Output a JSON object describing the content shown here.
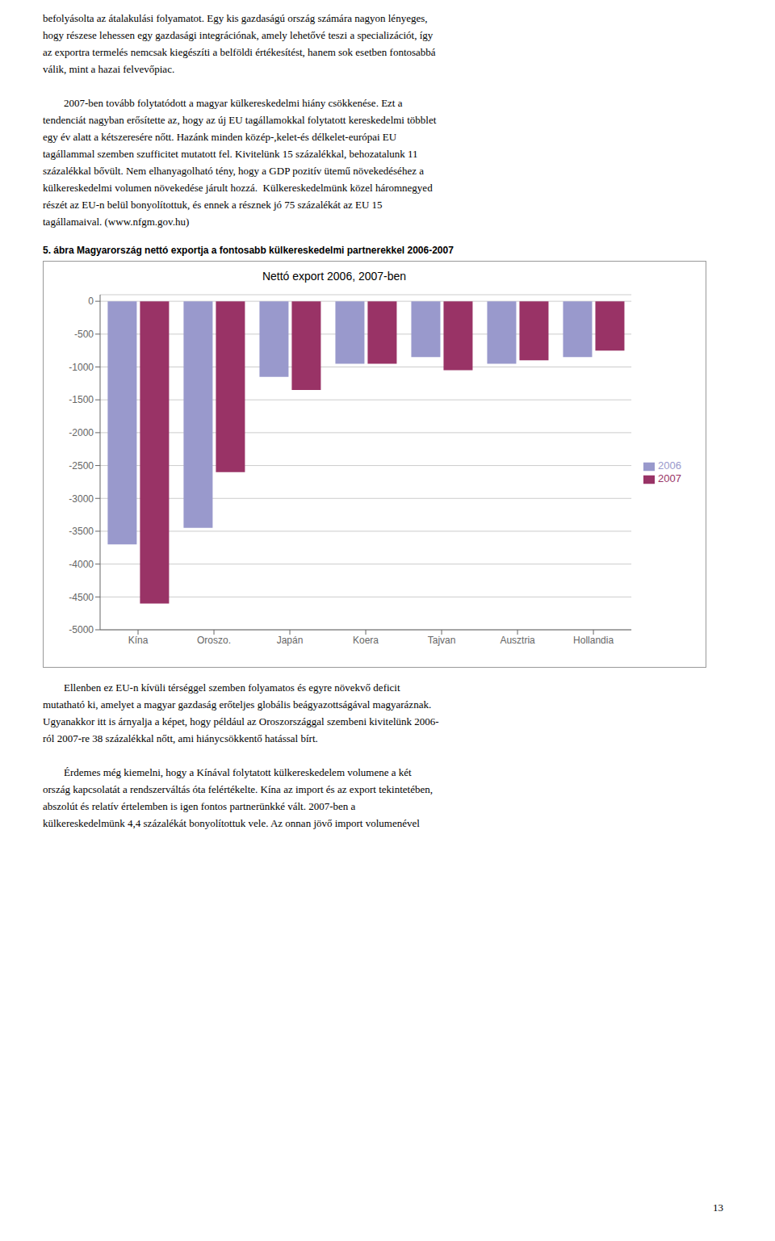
{
  "chart_data": {
    "type": "bar",
    "title": "Nettó export 2006, 2007-ben",
    "subtitle": "5. ábra Magyarország nettó exportja a fontosabb külkereskedelmi partnerekkel 2006-2007",
    "categories": [
      "Kína",
      "Oroszo.",
      "Japán",
      "Koera",
      "Tajvan",
      "Ausztria",
      "Hollandia"
    ],
    "series": [
      {
        "name": "2006",
        "color": "#9999CC",
        "values": [
          -3700,
          -3450,
          -1150,
          -950,
          -850,
          -950,
          -850
        ]
      },
      {
        "name": "2007",
        "color": "#993366",
        "values": [
          -4600,
          -2600,
          -1350,
          -950,
          -1050,
          -900,
          -750
        ]
      }
    ],
    "ylim": [
      -5000,
      100
    ],
    "yticks": [
      0,
      -500,
      -1000,
      -1500,
      -2000,
      -2500,
      -3000,
      -3500,
      -4000,
      -4500,
      -5000
    ],
    "grid": true,
    "legend": "right",
    "annotations": [
      "befolyásolta az átalakulási folyamatot. Egy kis gazdaságú ország számára nagyon lényeges,\nhogy részese lehessen egy gazdasági integrációnak, amely lehetővé teszi a specializációt, így\naz exportra termelés nemcsak kiegészíti a belföldi értékesítést, hanem sok esetben fontosabbá\nválik, mint a hazai felvevőpiac.\n\n        2007-ben tovább folytatódott a magyar külkereskedelmi hiány csökkenése. Ezt a\ntendenciát nagyban erősítette az, hogy az új EU tagállamokkal folytatott kereskedelmi többlet\negy év alatt a kétszeresére nőtt. Hazánk minden közép-,kelet-és délkelet-európai EU\ntagállammal szemben szufficitet mutatott fel. Kivitelünk 15 százalékkal, behozatalunk 11\nszázalékkal bővült. Nem elhanyagolható tény, hogy a GDP pozitív ütemű növekedéséhez a\nkülkereskedelmi volumen növekedése járult hozzá.  Külkereskedelmünk közel háromnegyed\nrészét az EU-n belül bonyolítottuk, és ennek a résznek jó 75 százalékát az EU 15\ntagállamaival. (www.nfgm.gov.hu)",
      "        Ellenben ez EU-n kívüli térséggel szemben folyamatos és egyre növekvő deficit\nmutatható ki, amelyet a magyar gazdaság erőteljes globális beágyazottságával magyaráznak.\nUgyanakkor itt is árnyalja a képet, hogy például az Oroszországgal szembeni kivitelünk 2006-\nról 2007-re 38 százalékkal nőtt, ami hiánycsökkentő hatással bírt.\n\n        Érdemes még kiemelni, hogy a Kínával folytatott külkereskedelem volumene a két\nország kapcsolatát a rendszerváltás óta felértékelte. Kína az import és az export tekintetében,\nabszolút és relatív értelemben is igen fontos partnerünkké vált. 2007-ben a\nkülkereskedelmünk 4,4 százalékát bonyolítottuk vele. Az onnan jövő import volumenével",
      "13"
    ]
  }
}
